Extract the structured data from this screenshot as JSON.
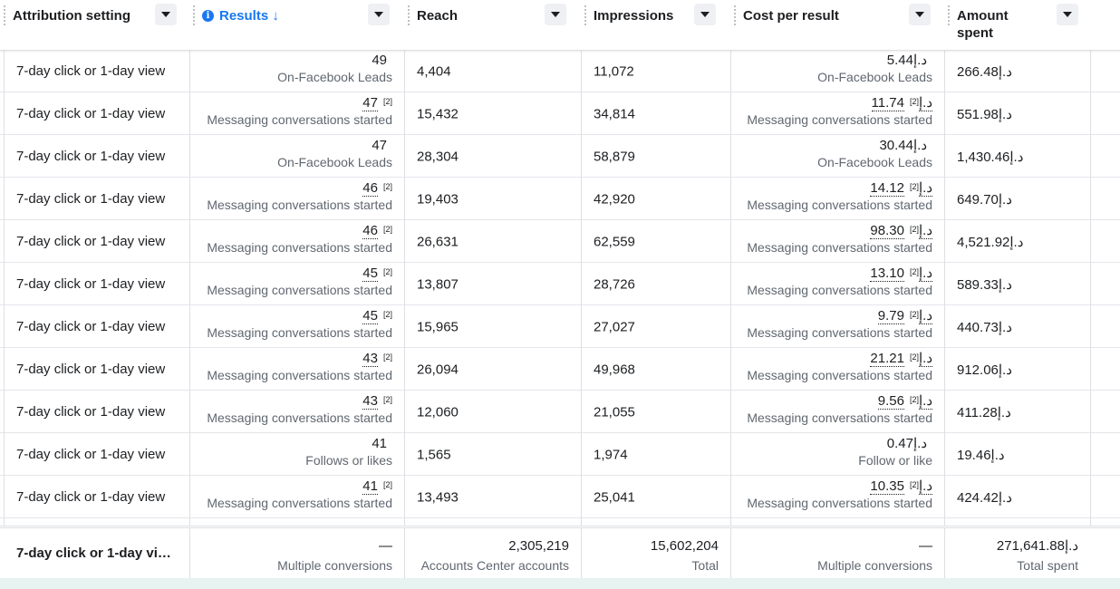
{
  "header": {
    "columns": [
      {
        "label": "Attribution setting"
      },
      {
        "label": "Results ↓"
      },
      {
        "label": "Reach"
      },
      {
        "label": "Impressions"
      },
      {
        "label": "Cost per result"
      },
      {
        "label": "Amount spent"
      }
    ]
  },
  "rows": [
    {
      "attribution": "7-day click or 1-day view",
      "results": "49",
      "results_sub": "On-Facebook Leads",
      "results_note": "",
      "reach": "4,404",
      "impressions": "11,072",
      "cost": "5.44د.إ",
      "cost_sub": "On-Facebook Leads",
      "cost_note": "",
      "spent": "266.48د.إ"
    },
    {
      "attribution": "7-day click or 1-day view",
      "results": "47",
      "results_sub": "Messaging conversations started",
      "results_note": "[2]",
      "reach": "15,432",
      "impressions": "34,814",
      "cost": "11.74د.إ",
      "cost_sub": "Messaging conversations started",
      "cost_note": "[2]",
      "spent": "551.98د.إ"
    },
    {
      "attribution": "7-day click or 1-day view",
      "results": "47",
      "results_sub": "On-Facebook Leads",
      "results_note": "",
      "reach": "28,304",
      "impressions": "58,879",
      "cost": "30.44د.إ",
      "cost_sub": "On-Facebook Leads",
      "cost_note": "",
      "spent": "1,430.46د.إ"
    },
    {
      "attribution": "7-day click or 1-day view",
      "results": "46",
      "results_sub": "Messaging conversations started",
      "results_note": "[2]",
      "reach": "19,403",
      "impressions": "42,920",
      "cost": "14.12د.إ",
      "cost_sub": "Messaging conversations started",
      "cost_note": "[2]",
      "spent": "649.70د.إ"
    },
    {
      "attribution": "7-day click or 1-day view",
      "results": "46",
      "results_sub": "Messaging conversations started",
      "results_note": "[2]",
      "reach": "26,631",
      "impressions": "62,559",
      "cost": "98.30د.إ",
      "cost_sub": "Messaging conversations started",
      "cost_note": "[2]",
      "spent": "4,521.92د.إ"
    },
    {
      "attribution": "7-day click or 1-day view",
      "results": "45",
      "results_sub": "Messaging conversations started",
      "results_note": "[2]",
      "reach": "13,807",
      "impressions": "28,726",
      "cost": "13.10د.إ",
      "cost_sub": "Messaging conversations started",
      "cost_note": "[2]",
      "spent": "589.33د.إ"
    },
    {
      "attribution": "7-day click or 1-day view",
      "results": "45",
      "results_sub": "Messaging conversations started",
      "results_note": "[2]",
      "reach": "15,965",
      "impressions": "27,027",
      "cost": "9.79د.إ",
      "cost_sub": "Messaging conversations started",
      "cost_note": "[2]",
      "spent": "440.73د.إ"
    },
    {
      "attribution": "7-day click or 1-day view",
      "results": "43",
      "results_sub": "Messaging conversations started",
      "results_note": "[2]",
      "reach": "26,094",
      "impressions": "49,968",
      "cost": "21.21د.إ",
      "cost_sub": "Messaging conversations started",
      "cost_note": "[2]",
      "spent": "912.06د.إ"
    },
    {
      "attribution": "7-day click or 1-day view",
      "results": "43",
      "results_sub": "Messaging conversations started",
      "results_note": "[2]",
      "reach": "12,060",
      "impressions": "21,055",
      "cost": "9.56د.إ",
      "cost_sub": "Messaging conversations started",
      "cost_note": "[2]",
      "spent": "411.28د.إ"
    },
    {
      "attribution": "7-day click or 1-day view",
      "results": "41",
      "results_sub": "Follows or likes",
      "results_note": "",
      "reach": "1,565",
      "impressions": "1,974",
      "cost": "0.47د.إ",
      "cost_sub": "Follow or like",
      "cost_note": "",
      "spent": "19.46د.إ"
    },
    {
      "attribution": "7-day click or 1-day view",
      "results": "41",
      "results_sub": "Messaging conversations started",
      "results_note": "[2]",
      "reach": "13,493",
      "impressions": "25,041",
      "cost": "10.35د.إ",
      "cost_sub": "Messaging conversations started",
      "cost_note": "[2]",
      "spent": "424.42د.إ"
    }
  ],
  "footer": {
    "attribution": "7-day click or 1-day vi…",
    "results": "—",
    "results_sub": "Multiple conversions",
    "reach": "2,305,219",
    "reach_sub": "Accounts Center accounts",
    "impressions": "15,602,204",
    "impressions_sub": "Total",
    "cost": "—",
    "cost_sub": "Multiple conversions",
    "spent": "271,641.88د.إ",
    "spent_sub": "Total spent"
  },
  "colors": {
    "sorted_header": "#1877f2",
    "subtext": "#606770",
    "border": "#dddfe2"
  },
  "icons": {
    "info": "info-icon",
    "dropdown": "caret-down-icon"
  }
}
